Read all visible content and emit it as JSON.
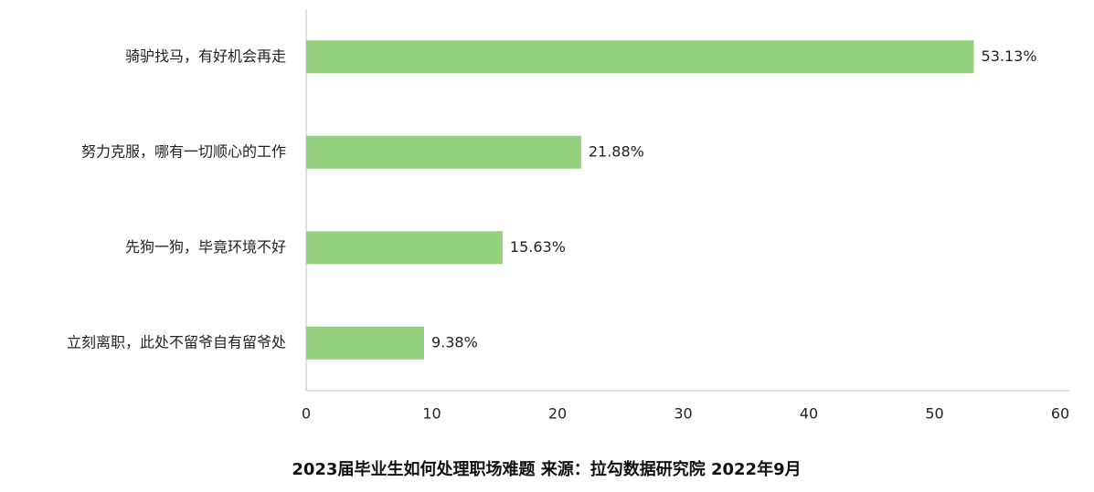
{
  "chart_data": {
    "type": "bar",
    "orientation": "horizontal",
    "title": "2023届毕业生如何处理职场难题 来源：拉勾数据研究院 2022年9月",
    "categories": [
      "骑驴找马，有好机会再走",
      "努力克服，哪有一切顺心的工作",
      "先狗一狗，毕竟环境不好",
      "立刻离职，此处不留爷自有留爷处"
    ],
    "values": [
      53.13,
      21.88,
      15.63,
      9.38
    ],
    "value_labels": [
      "53.13%",
      "21.88%",
      "15.63%",
      "9.38%"
    ],
    "color": "#95d27f",
    "xlim": [
      0,
      60
    ],
    "xticks": [
      0,
      10,
      20,
      30,
      40,
      50,
      60
    ],
    "grid": false
  }
}
